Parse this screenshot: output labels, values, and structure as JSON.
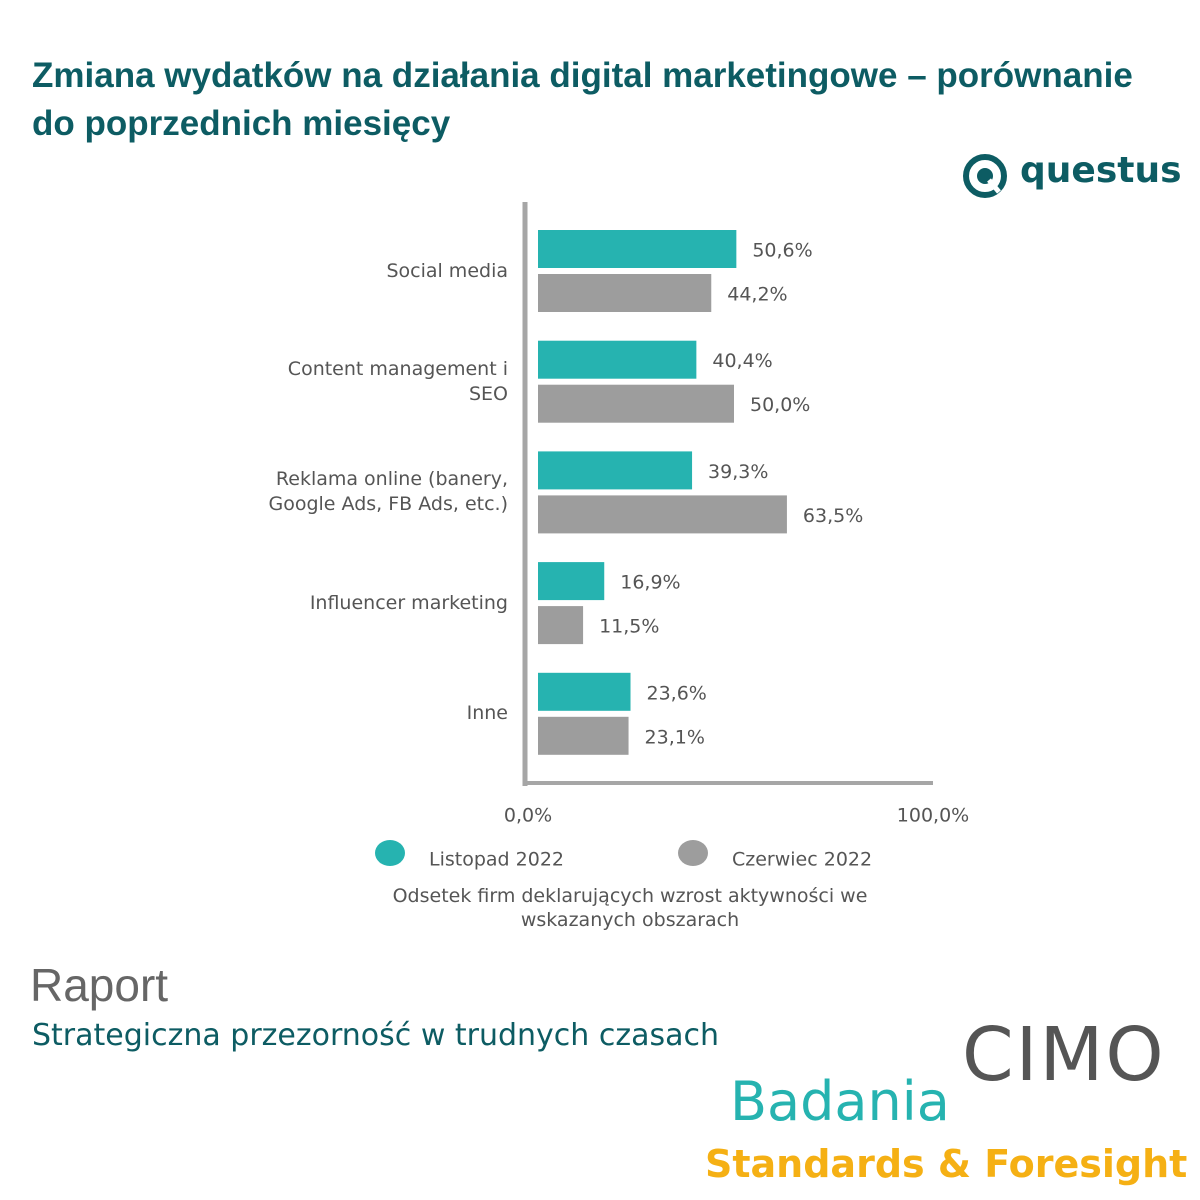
{
  "chart_data": {
    "type": "bar",
    "orientation": "horizontal",
    "title": "Zmiana wydatków na działania digital marketingowe – porównanie do poprzednich miesięcy",
    "categories": [
      "Social media",
      "Content management i SEO",
      "Reklama online (banery, Google Ads, FB Ads, etc.)",
      "Influencer marketing",
      "Inne"
    ],
    "series": [
      {
        "name": "Listopad 2022",
        "color": "#26b3b0",
        "values": [
          50.6,
          40.4,
          39.3,
          16.9,
          23.6
        ],
        "value_labels": [
          "50,6%",
          "40,4%",
          "39,3%",
          "16,9%",
          "23,6%"
        ]
      },
      {
        "name": "Czerwiec 2022",
        "color": "#9d9d9d",
        "values": [
          44.2,
          50.0,
          63.5,
          11.5,
          23.1
        ],
        "value_labels": [
          "44,2%",
          "50,0%",
          "63,5%",
          "11,5%",
          "23,1%"
        ]
      }
    ],
    "xlim": [
      0,
      100
    ],
    "xticks": [
      {
        "value": 0,
        "label": "0,0%"
      },
      {
        "value": 100,
        "label": "100,0%"
      }
    ],
    "x_label": "Odsetek firm deklarujących wzrost aktywności we wskazanych obszarach",
    "grid": false
  },
  "logo": "questus",
  "footer": {
    "report": "Raport",
    "report_title": "Strategiczna przezorność w trudnych czasach",
    "brand": "CIMO",
    "brand_line1": "Badania",
    "brand_line2": "Standards & Foresight"
  }
}
